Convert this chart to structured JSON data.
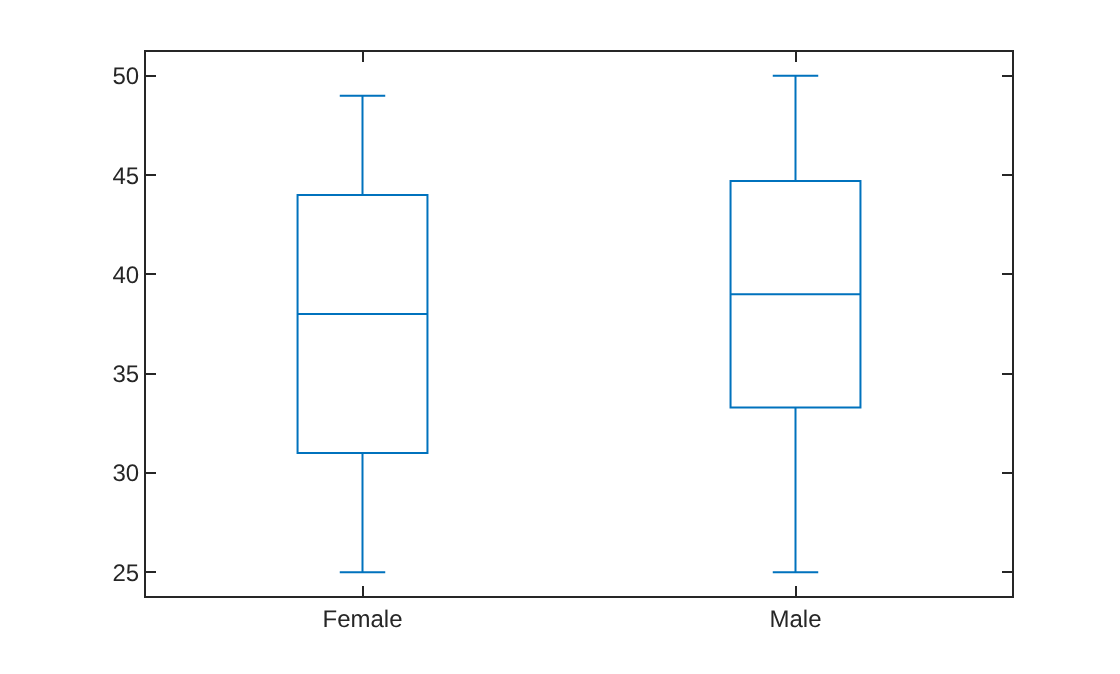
{
  "chart_data": {
    "type": "box",
    "categories": [
      "Female",
      "Male"
    ],
    "color": "#0072bd",
    "boxes": [
      {
        "low": 25,
        "q1": 31,
        "median": 38,
        "q3": 44,
        "high": 49
      },
      {
        "low": 25,
        "q1": 33.3,
        "median": 39,
        "q3": 44.7,
        "high": 50
      }
    ],
    "ylim": [
      23.8,
      51.2
    ],
    "yticks": [
      25,
      30,
      35,
      40,
      45,
      50
    ]
  }
}
